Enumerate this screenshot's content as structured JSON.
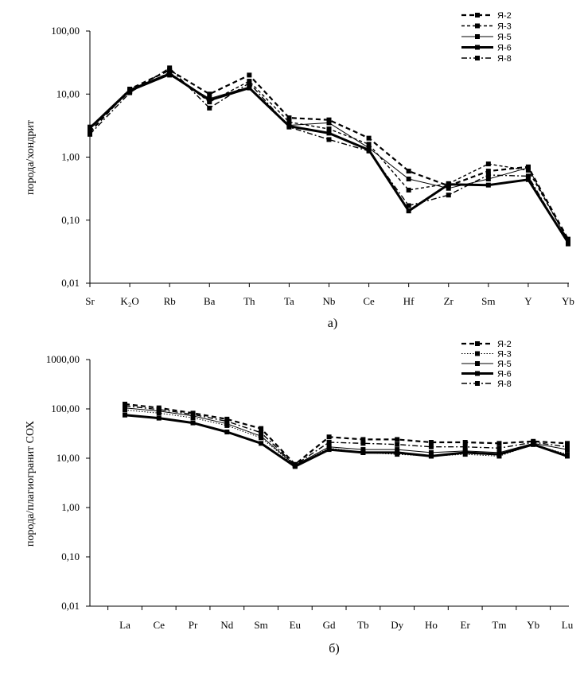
{
  "chart_data": [
    {
      "type": "line",
      "caption": "а)",
      "ylabel": "порода/хондрит",
      "yscale": "log",
      "ylim": [
        0.01,
        100
      ],
      "yticks": [
        "100,00",
        "10,00",
        "1,00",
        "0,10",
        "0,01"
      ],
      "ytick_values": [
        100,
        10,
        1,
        0.1,
        0.01
      ],
      "categories": [
        "Sr",
        "K₂O",
        "Rb",
        "Ba",
        "Th",
        "Ta",
        "Nb",
        "Ce",
        "Hf",
        "Zr",
        "Sm",
        "Y",
        "Yb"
      ],
      "legend_position": "top-right",
      "series": [
        {
          "name": "Я-2",
          "style": "dashed-bold",
          "values": [
            2.5,
            12,
            24,
            10,
            20,
            4.2,
            3.9,
            2.0,
            0.6,
            0.35,
            0.6,
            0.7,
            0.05
          ]
        },
        {
          "name": "Я-3",
          "style": "dashed",
          "values": [
            2.8,
            11,
            22,
            7.5,
            16,
            3.6,
            2.8,
            1.6,
            0.3,
            0.38,
            0.78,
            0.62,
            0.048
          ]
        },
        {
          "name": "Я-5",
          "style": "solid-thin",
          "values": [
            3.0,
            11,
            20,
            8.5,
            13,
            3.2,
            3.5,
            1.4,
            0.45,
            0.32,
            0.45,
            0.68,
            0.046
          ]
        },
        {
          "name": "Я-6",
          "style": "solid-bold",
          "values": [
            2.9,
            11.5,
            21,
            8.0,
            12.5,
            3.1,
            2.4,
            1.3,
            0.14,
            0.37,
            0.36,
            0.44,
            0.044
          ]
        },
        {
          "name": "Я-8",
          "style": "dash-dot",
          "values": [
            2.3,
            10.5,
            26,
            6.0,
            15,
            3.0,
            1.9,
            1.25,
            0.17,
            0.25,
            0.52,
            0.5,
            0.042
          ]
        }
      ]
    },
    {
      "type": "line",
      "caption": "б)",
      "ylabel": "порода/плагиогранит СОХ",
      "yscale": "log",
      "ylim": [
        0.01,
        1000
      ],
      "yticks": [
        "1000,00",
        "100,00",
        "10,00",
        "1,00",
        "0,10",
        "0,01"
      ],
      "ytick_values": [
        1000,
        100,
        10,
        1,
        0.1,
        0.01
      ],
      "categories": [
        "La",
        "Ce",
        "Pr",
        "Nd",
        "Sm",
        "Eu",
        "Gd",
        "Tb",
        "Dy",
        "Ho",
        "Er",
        "Tm",
        "Yb",
        "Lu"
      ],
      "legend_position": "top-right",
      "series": [
        {
          "name": "Я-2",
          "style": "dashed-bold",
          "values": [
            125,
            105,
            82,
            62,
            40,
            7.5,
            27,
            24,
            24,
            21,
            21,
            20,
            22,
            20
          ]
        },
        {
          "name": "Я-3",
          "style": "dotted",
          "values": [
            95,
            82,
            66,
            46,
            26,
            7.0,
            16,
            13,
            12,
            11,
            12,
            11,
            19,
            12
          ]
        },
        {
          "name": "Я-5",
          "style": "solid-thin",
          "values": [
            105,
            90,
            72,
            50,
            28,
            7.2,
            17,
            15,
            15,
            13,
            14,
            13,
            20,
            15
          ]
        },
        {
          "name": "Я-6",
          "style": "solid-bold",
          "values": [
            75,
            65,
            52,
            34,
            20,
            6.8,
            15,
            13,
            13,
            11,
            13,
            12,
            19,
            11
          ]
        },
        {
          "name": "Я-8",
          "style": "dash-dot",
          "values": [
            115,
            97,
            77,
            56,
            33,
            7.3,
            21,
            20,
            19,
            17,
            17,
            16,
            21,
            17
          ]
        }
      ]
    }
  ]
}
